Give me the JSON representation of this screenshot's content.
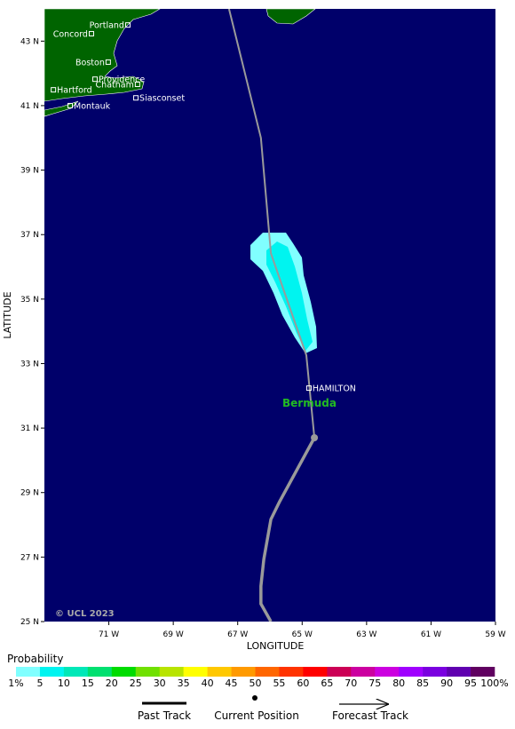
{
  "map": {
    "lon_range": [
      -73,
      -59
    ],
    "lat_range": [
      25,
      44
    ],
    "xticks": [
      {
        "value": -71,
        "label": "71 W"
      },
      {
        "value": -69,
        "label": "69 W"
      },
      {
        "value": -67,
        "label": "67 W"
      },
      {
        "value": -65,
        "label": "65 W"
      },
      {
        "value": -63,
        "label": "63 W"
      },
      {
        "value": -61,
        "label": "61 W"
      },
      {
        "value": -59,
        "label": "59 W"
      }
    ],
    "yticks": [
      {
        "value": 25,
        "label": "25 N"
      },
      {
        "value": 27,
        "label": "27 N"
      },
      {
        "value": 29,
        "label": "29 N"
      },
      {
        "value": 31,
        "label": "31 N"
      },
      {
        "value": 33,
        "label": "33 N"
      },
      {
        "value": 35,
        "label": "35 N"
      },
      {
        "value": 37,
        "label": "37 N"
      },
      {
        "value": 39,
        "label": "39 N"
      },
      {
        "value": 41,
        "label": "41 N"
      },
      {
        "value": 43,
        "label": "43 N"
      }
    ],
    "xlabel": "LONGITUDE",
    "ylabel": "LATITUDE",
    "cities": [
      {
        "name": "Portland",
        "lon": -70.41,
        "lat": 43.5,
        "side": "left"
      },
      {
        "name": "Concord",
        "lon": -71.54,
        "lat": 43.23,
        "side": "left"
      },
      {
        "name": "Boston",
        "lon": -71.02,
        "lat": 42.35,
        "side": "left"
      },
      {
        "name": "Providence",
        "lon": -71.43,
        "lat": 41.82,
        "side": "right"
      },
      {
        "name": "Chatham",
        "lon": -70.11,
        "lat": 41.66,
        "side": "left"
      },
      {
        "name": "Hartford",
        "lon": -72.72,
        "lat": 41.49,
        "side": "right"
      },
      {
        "name": "Siasconset",
        "lon": -70.16,
        "lat": 41.24,
        "side": "right"
      },
      {
        "name": "Montauk",
        "lon": -72.2,
        "lat": 41.0,
        "side": "right"
      },
      {
        "name": "HAMILTON",
        "lon": -64.79,
        "lat": 32.24,
        "side": "right"
      }
    ],
    "region_label": "Bermuda",
    "copyright": "© UCL 2023",
    "past_track": {
      "lon": [
        -67.27,
        -66.28,
        -65.97,
        -64.87,
        -64.62
      ],
      "lat": [
        44,
        40.0,
        36.42,
        33.26,
        30.7
      ]
    },
    "current_position": {
      "lon": -64.62,
      "lat": 30.7
    },
    "forecast_track": {
      "lon": [
        -64.62,
        -65.7,
        -65.97,
        -66.19,
        -66.28,
        -66.28,
        -65.97
      ],
      "lat": [
        30.7,
        28.72,
        28.17,
        26.93,
        26.1,
        25.55,
        25.0
      ]
    }
  },
  "legend": {
    "title": "Probability",
    "labels": [
      "1%",
      "5",
      "10",
      "15",
      "20",
      "25",
      "30",
      "35",
      "40",
      "45",
      "50",
      "55",
      "60",
      "65",
      "70",
      "75",
      "80",
      "85",
      "90",
      "95",
      "100%"
    ],
    "colors": [
      "#80ffff",
      "#00f4f0",
      "#00e8b8",
      "#00e070",
      "#00dc00",
      "#70e000",
      "#b8e400",
      "#ffff00",
      "#ffc800",
      "#ff9a00",
      "#ff6600",
      "#ff3300",
      "#ff0000",
      "#cc0055",
      "#cc00a0",
      "#cc00e0",
      "#a000ff",
      "#7a00e0",
      "#6000b0",
      "#600060"
    ],
    "past_track": "Past Track",
    "current_position": "Current Position",
    "forecast_track": "Forecast Track"
  }
}
